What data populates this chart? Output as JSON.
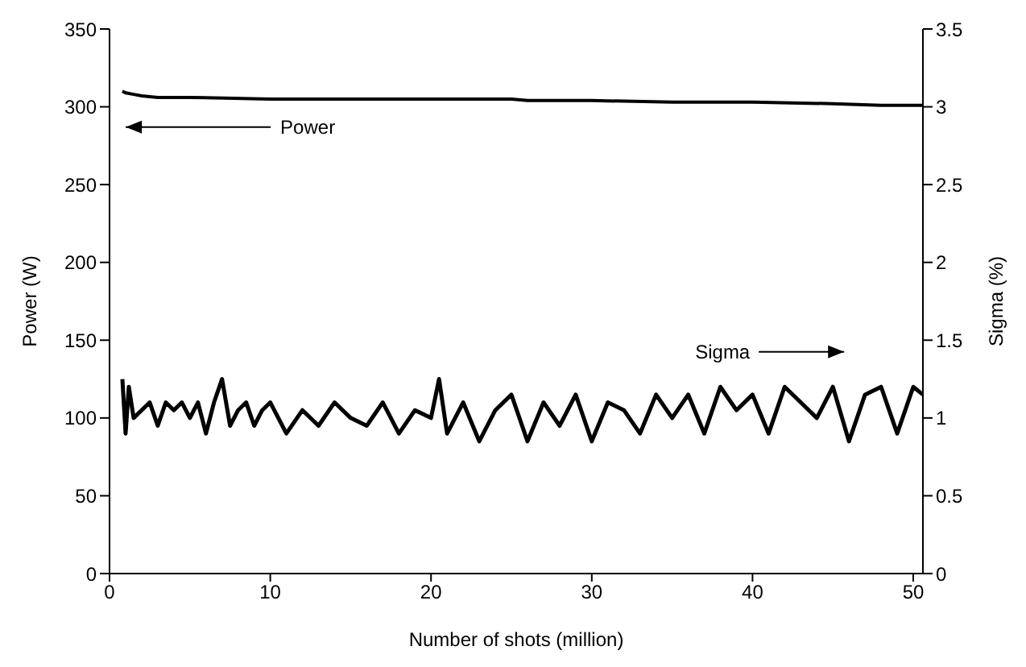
{
  "chart_data": {
    "type": "line",
    "xlabel": "Number of shots (million)",
    "ylabel": "Power (W)",
    "y2label": "Sigma (%)",
    "xlim": [
      0,
      50.6
    ],
    "xticks": [
      0,
      10,
      20,
      30,
      40,
      50
    ],
    "ylim": [
      0,
      350
    ],
    "yticks": [
      0,
      50,
      100,
      150,
      200,
      250,
      300,
      350
    ],
    "y2lim": [
      0,
      3.5
    ],
    "y2ticks": [
      0,
      0.5,
      1,
      1.5,
      2,
      2.5,
      3,
      3.5
    ],
    "marker": "none",
    "line_style": "solid",
    "series": [
      {
        "name": "Power",
        "color": "#000000",
        "x": [
          0.8,
          1,
          1.5,
          2,
          3,
          5,
          10,
          15,
          20,
          25,
          26,
          27,
          30,
          35,
          40,
          45,
          48,
          50,
          50.6
        ],
        "values": [
          310,
          309,
          308,
          307,
          306,
          306,
          305,
          305,
          305,
          305,
          304,
          304,
          304,
          303,
          303,
          302,
          301,
          301,
          301
        ]
      },
      {
        "name": "Sigma",
        "color": "#000000",
        "axis": "y2",
        "x": [
          0.8,
          1,
          1.2,
          1.5,
          2,
          2.5,
          3,
          3.5,
          4,
          4.5,
          5,
          5.5,
          6,
          6.5,
          7,
          7.5,
          8,
          8.5,
          9,
          9.5,
          10,
          11,
          12,
          13,
          14,
          15,
          16,
          17,
          18,
          19,
          20,
          20.5,
          21,
          22,
          23,
          24,
          25,
          26,
          27,
          28,
          29,
          30,
          31,
          32,
          33,
          34,
          35,
          36,
          37,
          38,
          39,
          40,
          41,
          42,
          43,
          44,
          45,
          46,
          47,
          48,
          49,
          50,
          50.6
        ],
        "values": [
          1.25,
          0.9,
          1.2,
          1.0,
          1.05,
          1.1,
          0.95,
          1.1,
          1.05,
          1.1,
          1.0,
          1.1,
          0.9,
          1.1,
          1.25,
          0.95,
          1.05,
          1.1,
          0.95,
          1.05,
          1.1,
          0.9,
          1.05,
          0.95,
          1.1,
          1.0,
          0.95,
          1.1,
          0.9,
          1.05,
          1.0,
          1.25,
          0.9,
          1.1,
          0.85,
          1.05,
          1.15,
          0.85,
          1.1,
          0.95,
          1.15,
          0.85,
          1.1,
          1.05,
          0.9,
          1.15,
          1.0,
          1.15,
          0.9,
          1.2,
          1.05,
          1.15,
          0.9,
          1.2,
          1.1,
          1.0,
          1.2,
          0.85,
          1.15,
          1.2,
          0.9,
          1.2,
          1.15
        ]
      }
    ]
  }
}
